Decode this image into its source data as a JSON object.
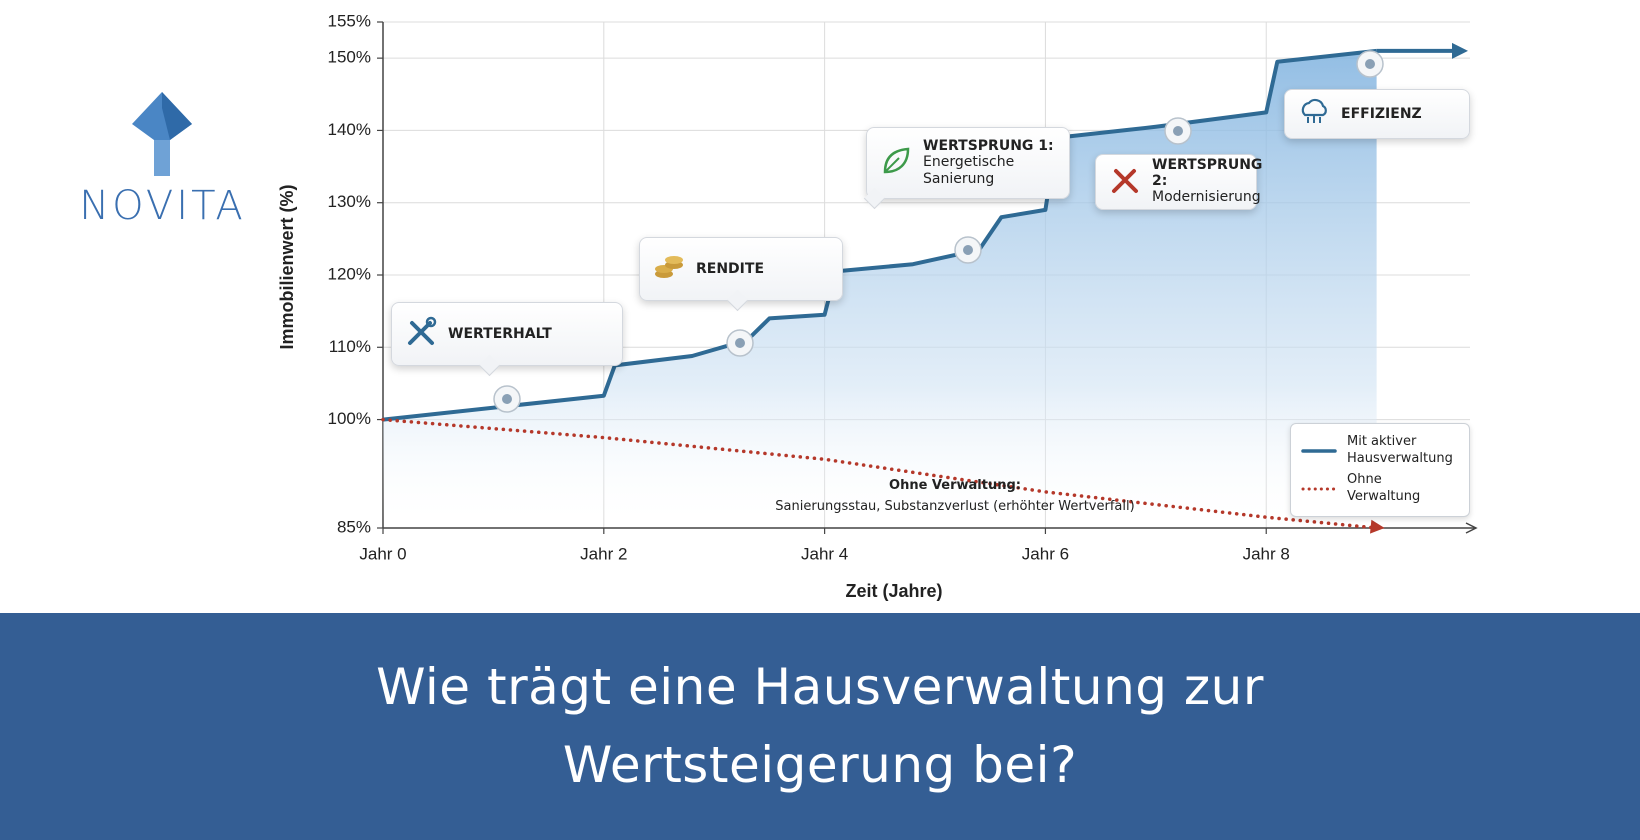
{
  "logo": {
    "text": "NOVITA"
  },
  "headline": "Wie trägt eine Hausverwaltung zur Wertsteigerung bei?",
  "chart_data": {
    "type": "line",
    "ylabel": "Immobilienwert (%)",
    "xlabel": "Zeit (Jahre)",
    "xlim": [
      0,
      9.9
    ],
    "ylim": [
      85,
      155
    ],
    "xticks": [
      {
        "value": 0,
        "label": "Jahr 0"
      },
      {
        "value": 2,
        "label": "Jahr 2"
      },
      {
        "value": 4,
        "label": "Jahr 4"
      },
      {
        "value": 6,
        "label": "Jahr 6"
      },
      {
        "value": 8,
        "label": "Jahr 8"
      }
    ],
    "yticks": [
      {
        "value": 85,
        "label": "85%"
      },
      {
        "value": 100,
        "label": "100%"
      },
      {
        "value": 110,
        "label": "110%"
      },
      {
        "value": 120,
        "label": "120%"
      },
      {
        "value": 130,
        "label": "130%"
      },
      {
        "value": 140,
        "label": "140%"
      },
      {
        "value": 150,
        "label": "150%"
      },
      {
        "value": 155,
        "label": "155%"
      }
    ],
    "grid": true,
    "legend": "lower right",
    "series": [
      {
        "name": "Mit aktiver Hausverwaltung",
        "color": "#2f6a94",
        "style": "solid",
        "x": [
          0,
          2.0,
          2.1,
          2.8,
          3.3,
          3.5,
          4.0,
          4.1,
          4.8,
          5.4,
          5.6,
          6.0,
          6.1,
          7.0,
          8.0,
          8.1,
          9.0
        ],
        "values": [
          100,
          103.3,
          107.5,
          108.8,
          111,
          114,
          114.5,
          120.5,
          121.5,
          123.5,
          128,
          129,
          139,
          140.5,
          142.5,
          149.5,
          151
        ]
      },
      {
        "name": "Ohne Verwaltung",
        "color": "#b5382a",
        "style": "dotted",
        "x": [
          0,
          2,
          4,
          6,
          8,
          9
        ],
        "values": [
          100,
          97.5,
          94.5,
          90,
          86.5,
          85
        ]
      }
    ],
    "annotations": [
      {
        "title": "WERTERHALT"
      },
      {
        "title": "RENDITE"
      },
      {
        "title": "WERTSPRUNG 1:",
        "text": "Energetische Sanierung"
      },
      {
        "title": "WERTSPRUNG 2:",
        "text": "Modernisierung"
      },
      {
        "title": "EFFIZIENZ"
      },
      {
        "title": "Ohne Verwaltung:",
        "text": "Sanierungsstau, Substanzverlust (erhöhter Wertverfall)"
      }
    ]
  }
}
